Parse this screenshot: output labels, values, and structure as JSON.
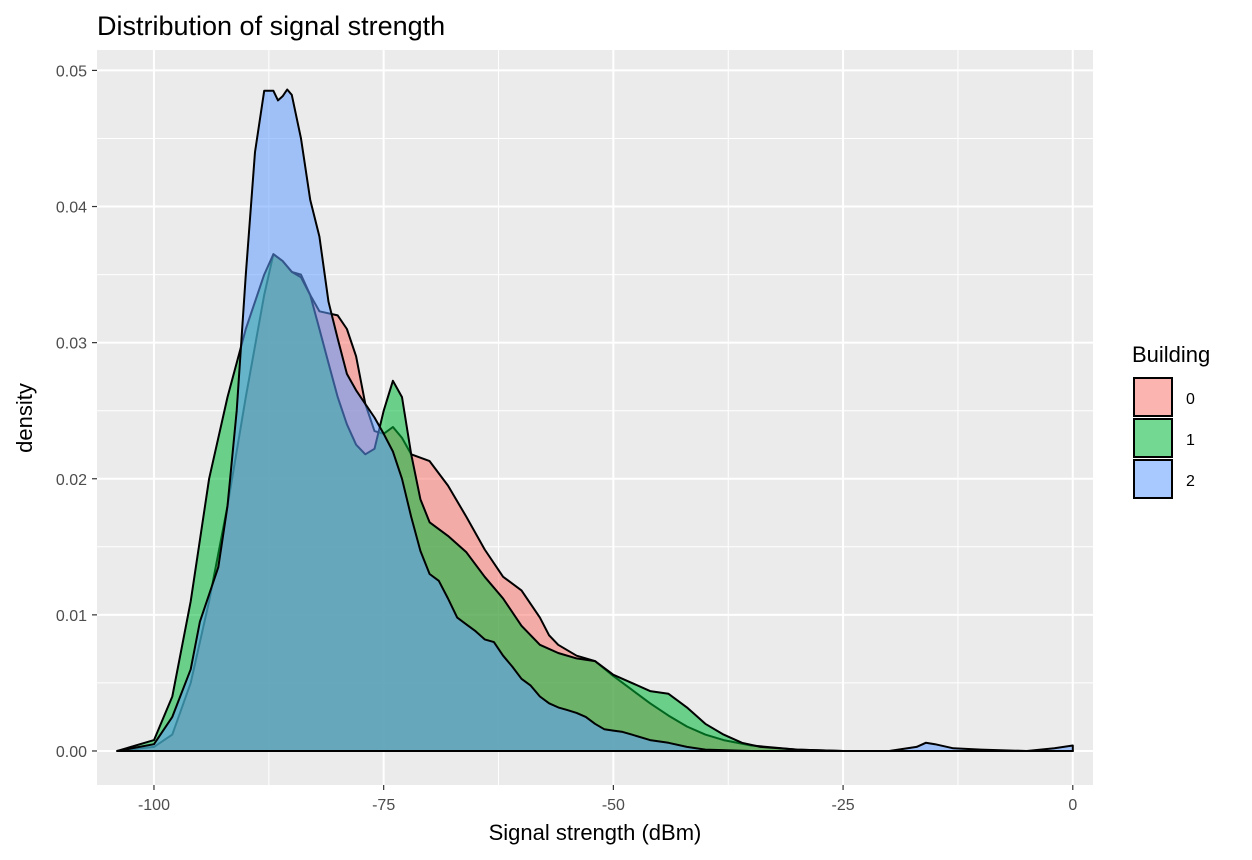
{
  "chart_data": {
    "type": "area",
    "title": "Distribution of signal strength",
    "xlabel": "Signal strength (dBm)",
    "ylabel": "density",
    "xlim": [
      -106.2,
      2.2
    ],
    "ylim": [
      -0.0025,
      0.0515
    ],
    "x_ticks": [
      -100,
      -75,
      -50,
      -25,
      0
    ],
    "x_tick_labels": [
      "-100",
      "-75",
      "-50",
      "-25",
      "0"
    ],
    "y_ticks": [
      0,
      0.01,
      0.02,
      0.03,
      0.04,
      0.05
    ],
    "y_tick_labels": [
      "0.00",
      "0.01",
      "0.02",
      "0.03",
      "0.04",
      "0.05"
    ],
    "grid": true,
    "legend": {
      "title": "Building",
      "position": "right"
    },
    "series": [
      {
        "name": "0",
        "color": "#F8766D",
        "points": [
          [
            -104,
            0
          ],
          [
            -100,
            0.0003
          ],
          [
            -98,
            0.0012
          ],
          [
            -96,
            0.005
          ],
          [
            -94,
            0.011
          ],
          [
            -92,
            0.018
          ],
          [
            -90,
            0.026
          ],
          [
            -88,
            0.0335
          ],
          [
            -87,
            0.0365
          ],
          [
            -86,
            0.036
          ],
          [
            -85,
            0.0352
          ],
          [
            -84,
            0.035
          ],
          [
            -83,
            0.0335
          ],
          [
            -82,
            0.0323
          ],
          [
            -80,
            0.032
          ],
          [
            -79,
            0.031
          ],
          [
            -78,
            0.029
          ],
          [
            -77,
            0.0255
          ],
          [
            -76,
            0.0235
          ],
          [
            -75,
            0.0233
          ],
          [
            -74,
            0.0238
          ],
          [
            -73,
            0.023
          ],
          [
            -72,
            0.0218
          ],
          [
            -70,
            0.0213
          ],
          [
            -68,
            0.0195
          ],
          [
            -66,
            0.0172
          ],
          [
            -64,
            0.0148
          ],
          [
            -62,
            0.0128
          ],
          [
            -60,
            0.0118
          ],
          [
            -58,
            0.0098
          ],
          [
            -57,
            0.0085
          ],
          [
            -56,
            0.0078
          ],
          [
            -54,
            0.007
          ],
          [
            -52,
            0.0066
          ],
          [
            -50,
            0.0055
          ],
          [
            -48,
            0.0045
          ],
          [
            -46,
            0.0035
          ],
          [
            -44,
            0.0026
          ],
          [
            -42,
            0.0018
          ],
          [
            -40,
            0.0012
          ],
          [
            -38,
            0.0008
          ],
          [
            -35,
            0.0004
          ],
          [
            -30,
            0.0001
          ],
          [
            -25,
            0
          ],
          [
            0,
            0
          ]
        ]
      },
      {
        "name": "1",
        "color": "#00BA38",
        "points": [
          [
            -104,
            0
          ],
          [
            -100,
            0.0008
          ],
          [
            -98,
            0.004
          ],
          [
            -96,
            0.011
          ],
          [
            -94,
            0.02
          ],
          [
            -92,
            0.026
          ],
          [
            -90,
            0.031
          ],
          [
            -88,
            0.035
          ],
          [
            -87,
            0.0365
          ],
          [
            -86,
            0.036
          ],
          [
            -85,
            0.0352
          ],
          [
            -84,
            0.0348
          ],
          [
            -83,
            0.0335
          ],
          [
            -82,
            0.031
          ],
          [
            -81,
            0.0285
          ],
          [
            -80,
            0.026
          ],
          [
            -79,
            0.024
          ],
          [
            -78,
            0.0225
          ],
          [
            -77,
            0.0218
          ],
          [
            -76,
            0.0222
          ],
          [
            -75,
            0.025
          ],
          [
            -74,
            0.0272
          ],
          [
            -73,
            0.026
          ],
          [
            -72,
            0.0218
          ],
          [
            -71,
            0.0185
          ],
          [
            -70,
            0.0168
          ],
          [
            -68,
            0.0158
          ],
          [
            -66,
            0.0146
          ],
          [
            -64,
            0.0128
          ],
          [
            -62,
            0.0112
          ],
          [
            -60,
            0.0092
          ],
          [
            -58,
            0.0078
          ],
          [
            -56,
            0.0072
          ],
          [
            -54,
            0.0068
          ],
          [
            -52,
            0.0066
          ],
          [
            -50,
            0.0056
          ],
          [
            -48,
            0.005
          ],
          [
            -46,
            0.0044
          ],
          [
            -44,
            0.0042
          ],
          [
            -42,
            0.0032
          ],
          [
            -40,
            0.002
          ],
          [
            -38,
            0.0012
          ],
          [
            -36,
            0.0006
          ],
          [
            -34,
            0.0003
          ],
          [
            -30,
            0.0001
          ],
          [
            -25,
            0
          ],
          [
            0,
            0
          ]
        ]
      },
      {
        "name": "2",
        "color": "#619CFF",
        "points": [
          [
            -104,
            0
          ],
          [
            -100,
            0.0005
          ],
          [
            -98,
            0.0025
          ],
          [
            -96,
            0.006
          ],
          [
            -95,
            0.0095
          ],
          [
            -94,
            0.0115
          ],
          [
            -93,
            0.0135
          ],
          [
            -92,
            0.018
          ],
          [
            -91,
            0.025
          ],
          [
            -90,
            0.035
          ],
          [
            -89,
            0.044
          ],
          [
            -88,
            0.0485
          ],
          [
            -87,
            0.0485
          ],
          [
            -86.5,
            0.0478
          ],
          [
            -86,
            0.0481
          ],
          [
            -85.5,
            0.0486
          ],
          [
            -85,
            0.0482
          ],
          [
            -84,
            0.045
          ],
          [
            -83,
            0.0405
          ],
          [
            -82,
            0.0378
          ],
          [
            -81,
            0.033
          ],
          [
            -80,
            0.0303
          ],
          [
            -79,
            0.0277
          ],
          [
            -78,
            0.0265
          ],
          [
            -77,
            0.0255
          ],
          [
            -76,
            0.0245
          ],
          [
            -75,
            0.0233
          ],
          [
            -74,
            0.022
          ],
          [
            -73,
            0.02
          ],
          [
            -72,
            0.0172
          ],
          [
            -71,
            0.0147
          ],
          [
            -70,
            0.013
          ],
          [
            -69,
            0.0125
          ],
          [
            -68,
            0.0112
          ],
          [
            -67,
            0.0098
          ],
          [
            -66,
            0.0093
          ],
          [
            -65,
            0.0088
          ],
          [
            -64,
            0.0082
          ],
          [
            -63,
            0.008
          ],
          [
            -62,
            0.007
          ],
          [
            -61,
            0.0062
          ],
          [
            -60,
            0.0053
          ],
          [
            -59,
            0.0048
          ],
          [
            -58,
            0.004
          ],
          [
            -57,
            0.0035
          ],
          [
            -56,
            0.0032
          ],
          [
            -55,
            0.003
          ],
          [
            -54,
            0.0028
          ],
          [
            -53,
            0.0025
          ],
          [
            -52,
            0.002
          ],
          [
            -51,
            0.0016
          ],
          [
            -50,
            0.0015
          ],
          [
            -49,
            0.0014
          ],
          [
            -48,
            0.0012
          ],
          [
            -46,
            0.0008
          ],
          [
            -44,
            0.0006
          ],
          [
            -42,
            0.0003
          ],
          [
            -40,
            0.0001
          ],
          [
            -35,
            0
          ],
          [
            -20,
            0
          ],
          [
            -17,
            0.0003
          ],
          [
            -16,
            0.0006
          ],
          [
            -15,
            0.0005
          ],
          [
            -13,
            0.0002
          ],
          [
            -10,
            0.0001
          ],
          [
            -5,
            0
          ],
          [
            -2,
            0.0002
          ],
          [
            0,
            0.0004
          ],
          [
            0,
            0
          ]
        ]
      }
    ]
  }
}
